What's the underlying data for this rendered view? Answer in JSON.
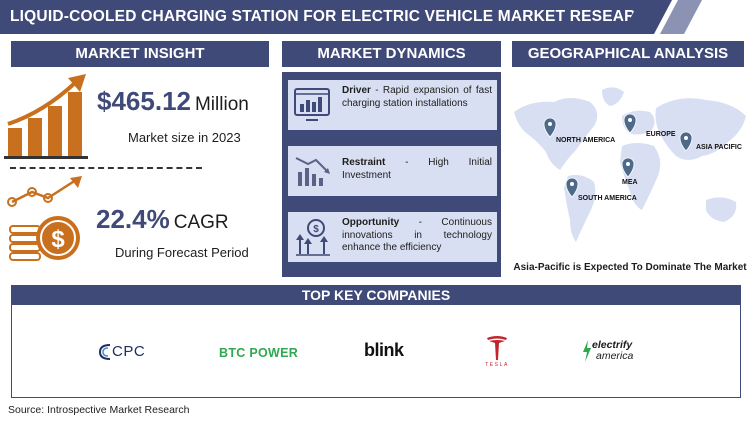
{
  "header": {
    "title": "LIQUID-COOLED CHARGING STATION FOR ELECTRIC VEHICLE MARKET RESEARCH REPORT"
  },
  "sections": {
    "insight": "MARKET INSIGHT",
    "dynamics": "MARKET DYNAMICS",
    "geo": "GEOGRAPHICAL ANALYSIS",
    "companies": "TOP KEY COMPANIES"
  },
  "insight": {
    "market_value": "$465.12",
    "market_unit": "Million",
    "market_caption": "Market size in 2023",
    "cagr_value": "22.4%",
    "cagr_unit": "CAGR",
    "cagr_caption": "During Forecast Period",
    "icons": [
      "bar-growth-icon",
      "coin-growth-icon"
    ]
  },
  "dynamics": [
    {
      "label": "Driver",
      "text": "Rapid expansion of fast charging station installations",
      "icon": "monitor-chart-icon"
    },
    {
      "label": "Restraint",
      "text": "High Initial Investment",
      "icon": "declining-chart-icon"
    },
    {
      "label": "Opportunity",
      "text": "Continuous innovations in technology enhance the efficiency",
      "icon": "growth-arrows-icon"
    }
  ],
  "geo": {
    "regions": [
      "NORTH AMERICA",
      "EUROPE",
      "ASIA PACIFIC",
      "MEA",
      "SOUTH AMERICA"
    ],
    "caption": "Asia-Pacific is Expected To Dominate The Market",
    "pin_color": "#4d6a8a",
    "map_color": "#d9dff2"
  },
  "companies": {
    "cpc": "CPC",
    "btc": "BTC POWER",
    "blink": "blink",
    "tesla": "TESLA",
    "electrify_1": "electrify",
    "electrify_2": "america"
  },
  "source": "Source: Introspective Market Research",
  "colors": {
    "navy": "#3f4a78",
    "accent_orange": "#c9701f",
    "light_panel": "#d9dff2"
  }
}
